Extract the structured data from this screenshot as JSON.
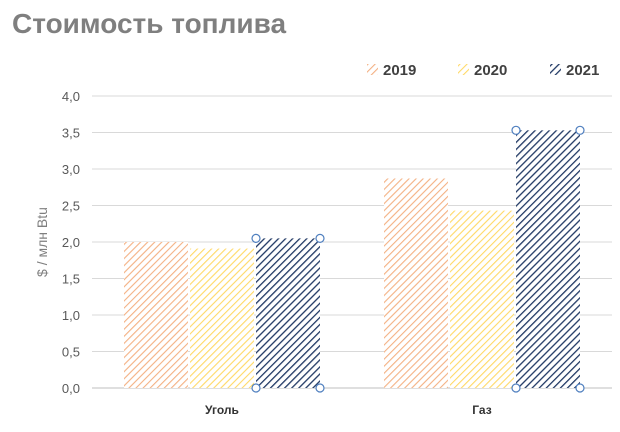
{
  "chart_data": {
    "type": "bar",
    "title": "Стоимость топлива",
    "ylabel": "$ / млн Btu",
    "xlabel": "",
    "categories": [
      "Уголь",
      "Газ"
    ],
    "series": [
      {
        "name": "2019",
        "values": [
          2.0,
          2.87
        ],
        "color": "#f4b183",
        "pattern": "diagonal-light"
      },
      {
        "name": "2020",
        "values": [
          1.91,
          2.43
        ],
        "color": "#ffd966",
        "pattern": "diagonal-light"
      },
      {
        "name": "2021",
        "values": [
          2.05,
          3.53
        ],
        "color": "#203864",
        "pattern": "diagonal-dark",
        "selected": true
      }
    ],
    "ylim": [
      0,
      4.0
    ],
    "yticks": [
      "0,0",
      "0,5",
      "1,0",
      "1,5",
      "2,0",
      "2,5",
      "3,0",
      "3,5",
      "4,0"
    ],
    "grid": true,
    "legend": "top-right"
  }
}
